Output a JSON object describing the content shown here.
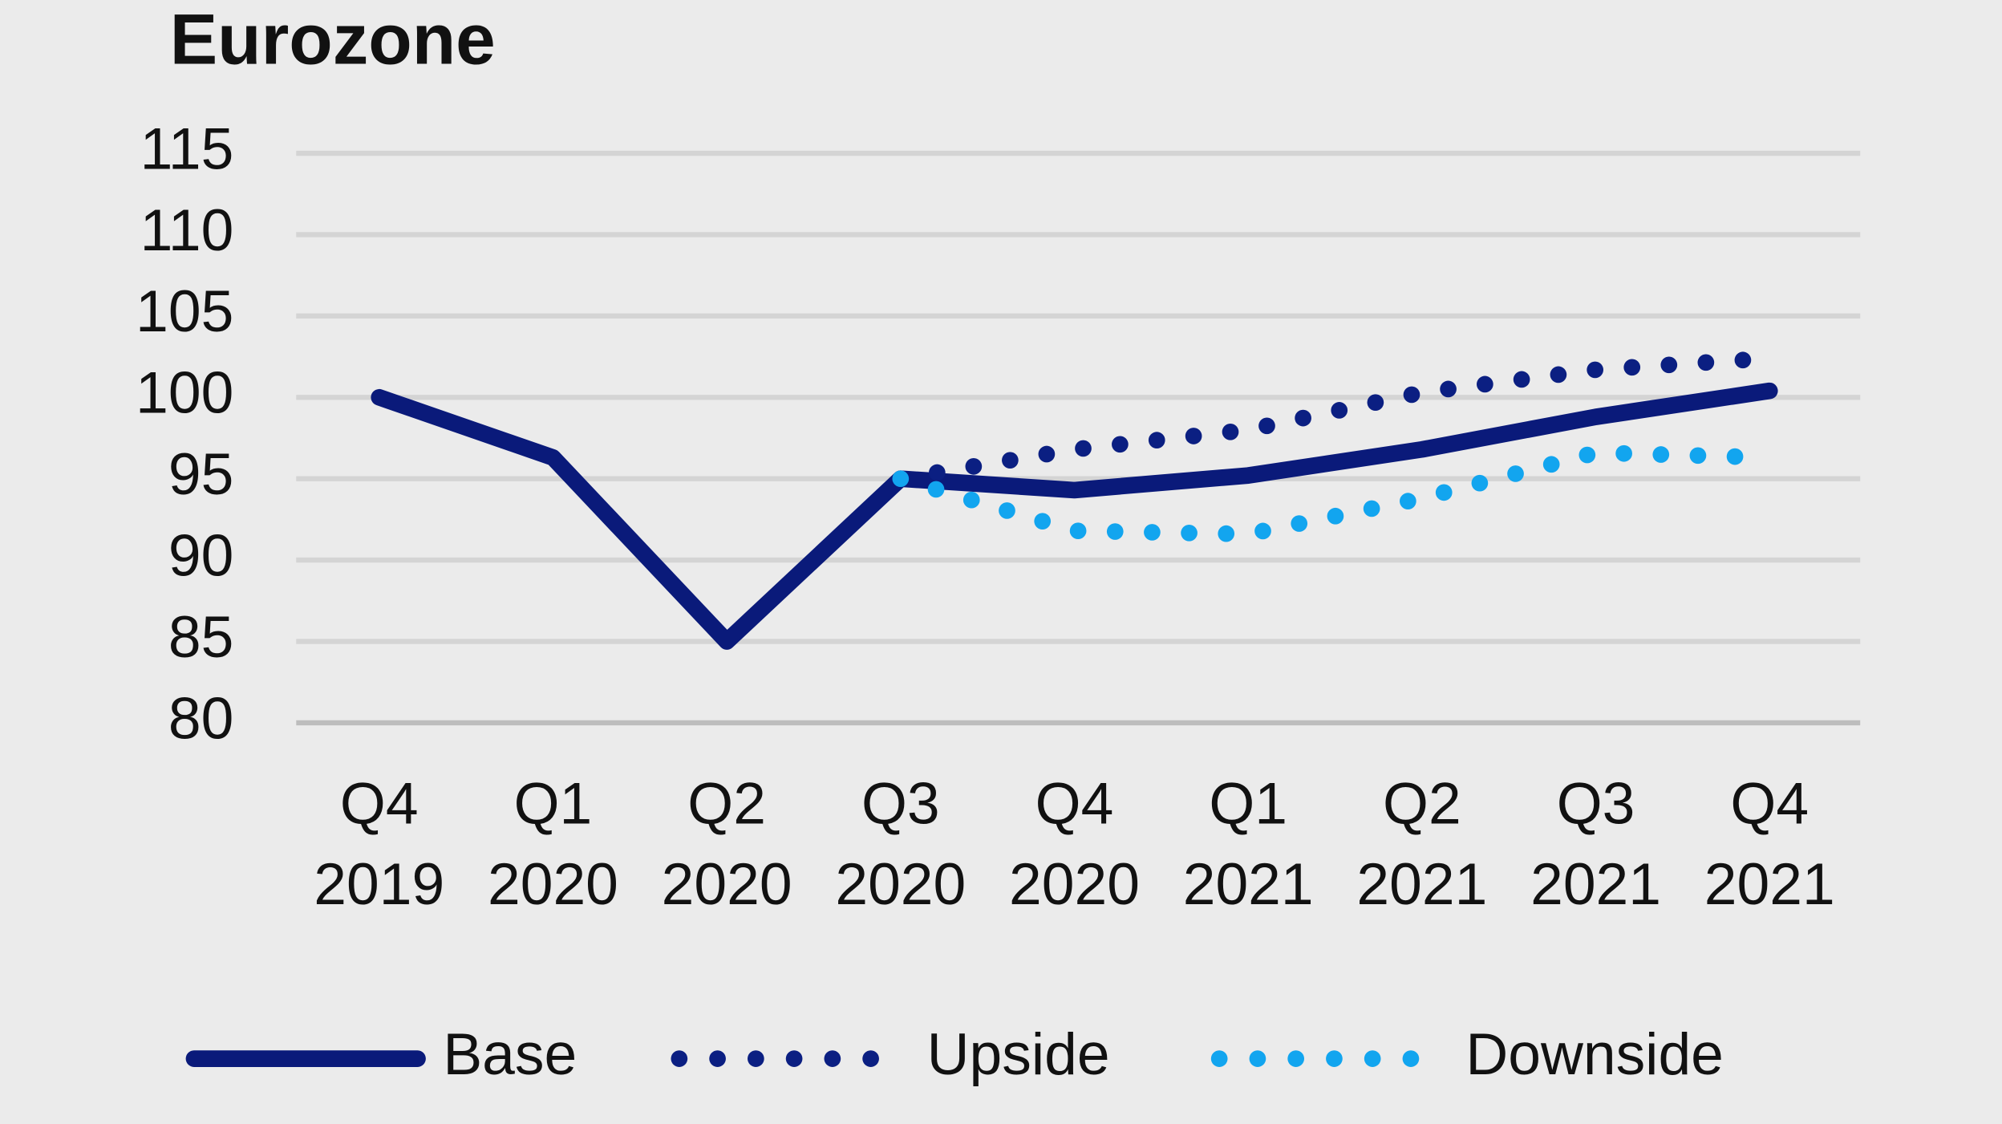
{
  "chart_data": {
    "type": "line",
    "title": "Eurozone",
    "categories": [
      "Q4\n2019",
      "Q1\n2020",
      "Q2\n2020",
      "Q3\n2020",
      "Q4\n2020",
      "Q1\n2021",
      "Q2\n2021",
      "Q3\n2021",
      "Q4\n2021"
    ],
    "series": [
      {
        "name": "Base",
        "color": "#0a1a7a",
        "style": "solid",
        "values": [
          100,
          96.3,
          85,
          95,
          94.3,
          95.2,
          96.8,
          98.8,
          100.4
        ]
      },
      {
        "name": "Upside",
        "color": "#0b1f82",
        "style": "dotted",
        "values": [
          null,
          null,
          null,
          95,
          96.8,
          98,
          100.3,
          101.7,
          102.4
        ]
      },
      {
        "name": "Downside",
        "color": "#12a5ef",
        "style": "dotted",
        "values": [
          null,
          null,
          null,
          95,
          91.8,
          91.6,
          93.8,
          96.6,
          96.3
        ]
      }
    ],
    "ylim": [
      80,
      115
    ],
    "yticks": [
      80,
      85,
      90,
      95,
      100,
      105,
      110,
      115
    ],
    "grid": true,
    "legend": "bottom"
  }
}
